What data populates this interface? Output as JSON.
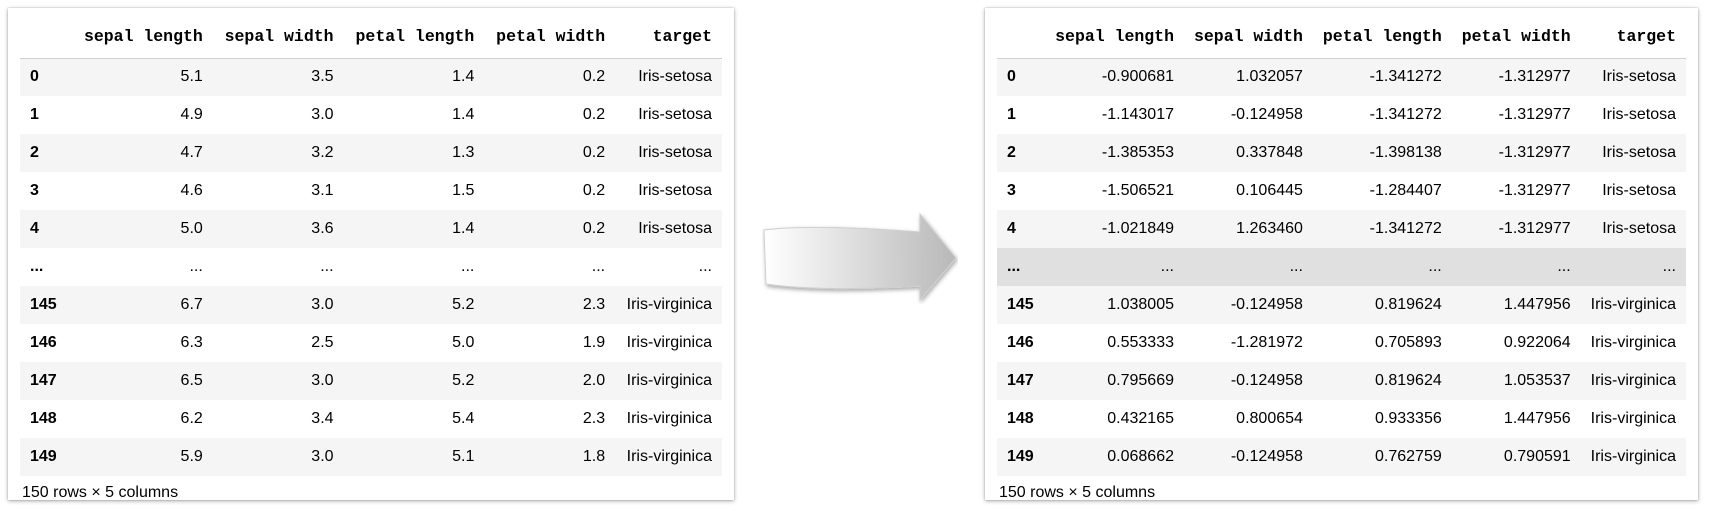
{
  "left_table": {
    "columns": [
      "",
      "sepal length",
      "sepal width",
      "petal length",
      "petal width",
      "target"
    ],
    "rows": [
      [
        "0",
        "5.1",
        "3.5",
        "1.4",
        "0.2",
        "Iris-setosa"
      ],
      [
        "1",
        "4.9",
        "3.0",
        "1.4",
        "0.2",
        "Iris-setosa"
      ],
      [
        "2",
        "4.7",
        "3.2",
        "1.3",
        "0.2",
        "Iris-setosa"
      ],
      [
        "3",
        "4.6",
        "3.1",
        "1.5",
        "0.2",
        "Iris-setosa"
      ],
      [
        "4",
        "5.0",
        "3.6",
        "1.4",
        "0.2",
        "Iris-setosa"
      ],
      [
        "...",
        "...",
        "...",
        "...",
        "...",
        "..."
      ],
      [
        "145",
        "6.7",
        "3.0",
        "5.2",
        "2.3",
        "Iris-virginica"
      ],
      [
        "146",
        "6.3",
        "2.5",
        "5.0",
        "1.9",
        "Iris-virginica"
      ],
      [
        "147",
        "6.5",
        "3.0",
        "5.2",
        "2.0",
        "Iris-virginica"
      ],
      [
        "148",
        "6.2",
        "3.4",
        "5.4",
        "2.3",
        "Iris-virginica"
      ],
      [
        "149",
        "5.9",
        "3.0",
        "5.1",
        "1.8",
        "Iris-virginica"
      ]
    ],
    "footer": "150 rows × 5 columns"
  },
  "right_table": {
    "columns": [
      "",
      "sepal length",
      "sepal width",
      "petal length",
      "petal width",
      "target"
    ],
    "rows": [
      [
        "0",
        "-0.900681",
        "1.032057",
        "-1.341272",
        "-1.312977",
        "Iris-setosa"
      ],
      [
        "1",
        "-1.143017",
        "-0.124958",
        "-1.341272",
        "-1.312977",
        "Iris-setosa"
      ],
      [
        "2",
        "-1.385353",
        "0.337848",
        "-1.398138",
        "-1.312977",
        "Iris-setosa"
      ],
      [
        "3",
        "-1.506521",
        "0.106445",
        "-1.284407",
        "-1.312977",
        "Iris-setosa"
      ],
      [
        "4",
        "-1.021849",
        "1.263460",
        "-1.341272",
        "-1.312977",
        "Iris-setosa"
      ],
      [
        "...",
        "...",
        "...",
        "...",
        "...",
        "..."
      ],
      [
        "145",
        "1.038005",
        "-0.124958",
        "0.819624",
        "1.447956",
        "Iris-virginica"
      ],
      [
        "146",
        "0.553333",
        "-1.281972",
        "0.705893",
        "0.922064",
        "Iris-virginica"
      ],
      [
        "147",
        "0.795669",
        "-0.124958",
        "0.819624",
        "1.053537",
        "Iris-virginica"
      ],
      [
        "148",
        "0.432165",
        "0.800654",
        "0.933356",
        "1.447956",
        "Iris-virginica"
      ],
      [
        "149",
        "0.068662",
        "-0.124958",
        "0.762759",
        "0.790591",
        "Iris-virginica"
      ]
    ],
    "highlighted_row": 5,
    "footer": "150 rows × 5 columns"
  },
  "arrow": {
    "icon": "right-arrow-icon",
    "color_light": "#ffffff",
    "color_dark": "#b8b8b8"
  }
}
